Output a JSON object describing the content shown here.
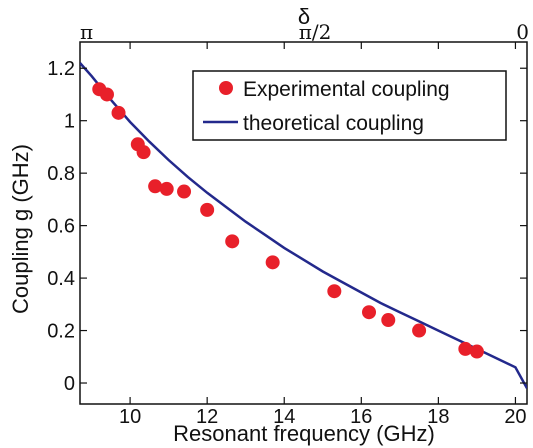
{
  "chart_data": {
    "type": "scatter",
    "xlabel": "Resonant frequency (GHz)",
    "ylabel": "Coupling g (GHz)",
    "xlim": [
      8.7,
      20.3
    ],
    "ylim": [
      -0.08,
      1.3
    ],
    "x_ticks": [
      10,
      12,
      14,
      16,
      18,
      20
    ],
    "x_tick_labels": [
      "10",
      "12",
      "14",
      "16",
      "18",
      "20"
    ],
    "y_ticks": [
      0,
      0.2,
      0.4,
      0.6,
      0.8,
      1.0,
      1.2
    ],
    "y_tick_labels": [
      "0",
      "0.2",
      "0.4",
      "0.6",
      "0.8",
      "1",
      "1.2"
    ],
    "top_axis": {
      "label": "δ",
      "ticks": [
        {
          "x": 8.87,
          "label": "π"
        },
        {
          "x": 14.8,
          "label": "π/2"
        },
        {
          "x": 20.3,
          "label": "0"
        }
      ]
    },
    "grid": false,
    "legend": {
      "placement": "top-right",
      "entries": [
        "Experimental coupling",
        "theoretical coupling"
      ]
    },
    "colors": {
      "experimental": "#e8202a",
      "theoretical": "#23298c",
      "axis": "#111111"
    },
    "series": [
      {
        "name": "Experimental coupling",
        "type": "scatter",
        "x": [
          9.2,
          9.4,
          9.7,
          10.2,
          10.35,
          10.65,
          10.95,
          11.4,
          12.0,
          12.65,
          13.7,
          15.3,
          16.2,
          16.7,
          17.5,
          18.7,
          19.0
        ],
        "y": [
          1.12,
          1.1,
          1.03,
          0.91,
          0.88,
          0.75,
          0.74,
          0.73,
          0.66,
          0.54,
          0.46,
          0.35,
          0.27,
          0.24,
          0.2,
          0.13,
          0.12
        ]
      },
      {
        "name": "theoretical coupling",
        "type": "line",
        "x": [
          8.7,
          9.0,
          9.5,
          10.0,
          10.5,
          11.0,
          11.5,
          12.0,
          12.5,
          13.0,
          13.5,
          14.0,
          14.5,
          15.0,
          15.5,
          16.0,
          16.5,
          17.0,
          17.5,
          18.0,
          18.5,
          19.0,
          19.5,
          20.0,
          20.3
        ],
        "y": [
          1.22,
          1.17,
          1.08,
          0.995,
          0.92,
          0.85,
          0.785,
          0.725,
          0.67,
          0.615,
          0.565,
          0.515,
          0.47,
          0.425,
          0.385,
          0.345,
          0.305,
          0.27,
          0.235,
          0.2,
          0.165,
          0.13,
          0.095,
          0.06,
          -0.02
        ]
      }
    ]
  }
}
